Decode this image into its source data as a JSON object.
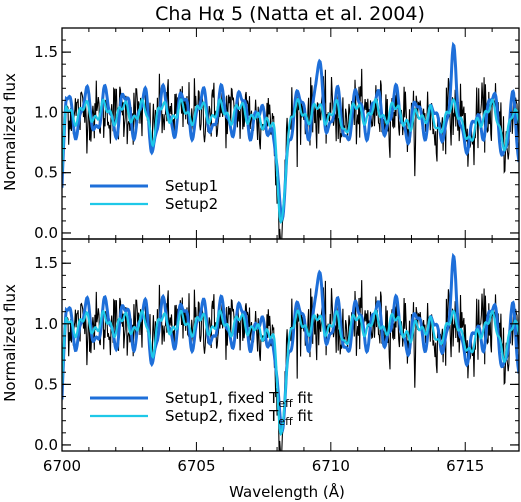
{
  "title": "Cha Hα 5 (Natta et al. 2004)",
  "chart_data": [
    {
      "type": "line",
      "panel": "top",
      "ylabel": "Normalized flux",
      "xlim": [
        6700,
        6717
      ],
      "ylim": [
        -0.05,
        1.7
      ],
      "yticks": [
        0.0,
        0.5,
        1.0,
        1.5
      ],
      "ytick_labels": [
        "0.0",
        "0.5",
        "1.0",
        "1.5"
      ],
      "legend_position": "lower-left",
      "series": [
        {
          "name": "",
          "color": "#000000",
          "style": "observed"
        },
        {
          "name": "Setup1",
          "color": "#1e6fd9",
          "style": "model1"
        },
        {
          "name": "Setup2",
          "color": "#1ec8e8",
          "style": "model2"
        }
      ]
    },
    {
      "type": "line",
      "panel": "bottom",
      "xlabel": "Wavelength (Å)",
      "ylabel": "Normalized flux",
      "xlim": [
        6700,
        6717
      ],
      "ylim": [
        -0.05,
        1.7
      ],
      "xticks": [
        6700,
        6705,
        6710,
        6715
      ],
      "xtick_labels": [
        "6700",
        "6705",
        "6710",
        "6715"
      ],
      "yticks": [
        0.0,
        0.5,
        1.0,
        1.5
      ],
      "ytick_labels": [
        "0.0",
        "0.5",
        "1.0",
        "1.5"
      ],
      "legend_position": "lower-left",
      "series": [
        {
          "name": "",
          "color": "#000000",
          "style": "observed"
        },
        {
          "name": "Setup1, fixed T",
          "subscript": "eff",
          "suffix": " fit",
          "color": "#1e6fd9",
          "style": "model1"
        },
        {
          "name": "Setup2, fixed T",
          "subscript": "eff",
          "suffix": " fit",
          "color": "#1ec8e8",
          "style": "model2"
        }
      ]
    }
  ]
}
